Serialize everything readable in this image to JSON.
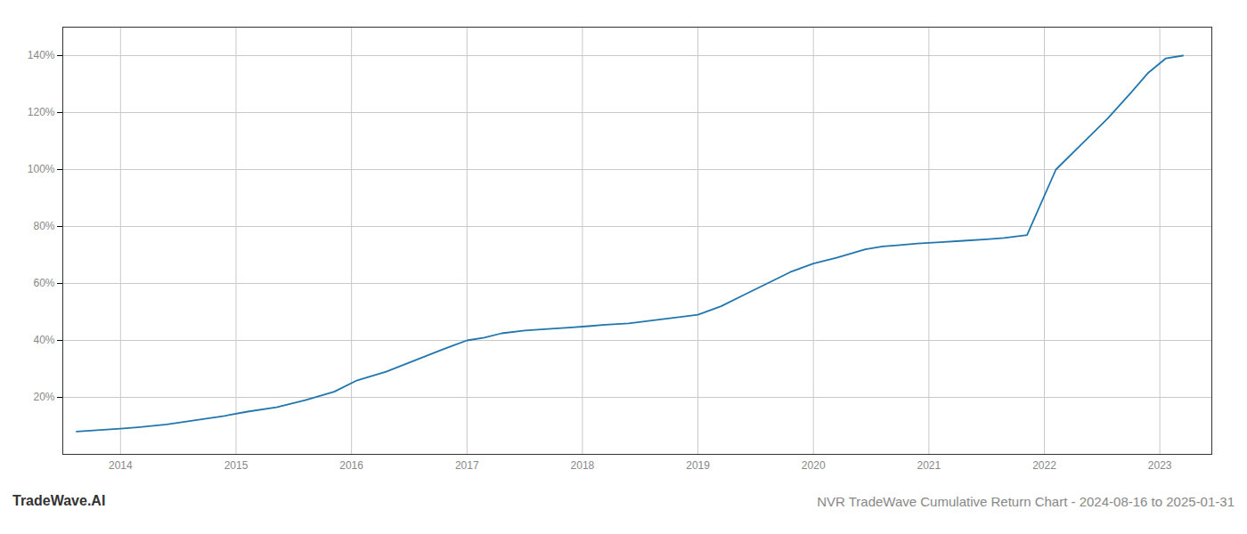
{
  "chart_data": {
    "type": "line",
    "title": "NVR TradeWave Cumulative Return Chart - 2024-08-16 to 2025-01-31",
    "annotations": [
      "TradeWave.AI"
    ],
    "x": [
      2013.62,
      2014.0,
      2014.15,
      2014.4,
      2014.65,
      2014.9,
      2015.1,
      2015.35,
      2015.6,
      2015.85,
      2016.05,
      2016.3,
      2016.55,
      2016.8,
      2017.0,
      2017.15,
      2017.3,
      2017.5,
      2017.7,
      2017.88,
      2018.05,
      2018.2,
      2018.4,
      2018.6,
      2018.8,
      2019.0,
      2019.2,
      2019.4,
      2019.6,
      2019.8,
      2020.0,
      2020.2,
      2020.45,
      2020.6,
      2020.75,
      2020.9,
      2021.1,
      2021.3,
      2021.5,
      2021.65,
      2021.85,
      2022.1,
      2022.3,
      2022.55,
      2022.75,
      2022.9,
      2023.05,
      2023.2
    ],
    "values": [
      8,
      9,
      9.5,
      10.5,
      12,
      13.5,
      15,
      16.5,
      19,
      22,
      26,
      29,
      33,
      37,
      40,
      41,
      42.5,
      43.5,
      44,
      44.5,
      45,
      45.5,
      46,
      47,
      48,
      49,
      52,
      56,
      60,
      64,
      67,
      69,
      72,
      73,
      73.5,
      74,
      74.5,
      75,
      75.5,
      76,
      77,
      100,
      108,
      118,
      127,
      134,
      139,
      140
    ],
    "color": "#2176ae",
    "xlim": [
      2013.5,
      2023.45
    ],
    "ylim": [
      0,
      150
    ],
    "xticks": [
      2014,
      2015,
      2016,
      2017,
      2018,
      2019,
      2020,
      2021,
      2022,
      2023
    ],
    "yticks": [
      {
        "value": 20,
        "label": "20%"
      },
      {
        "value": 40,
        "label": "40%"
      },
      {
        "value": 60,
        "label": "60%"
      },
      {
        "value": 80,
        "label": "80%"
      },
      {
        "value": 100,
        "label": "100%"
      },
      {
        "value": 120,
        "label": "120%"
      },
      {
        "value": 140,
        "label": "140%"
      }
    ],
    "grid": true
  }
}
